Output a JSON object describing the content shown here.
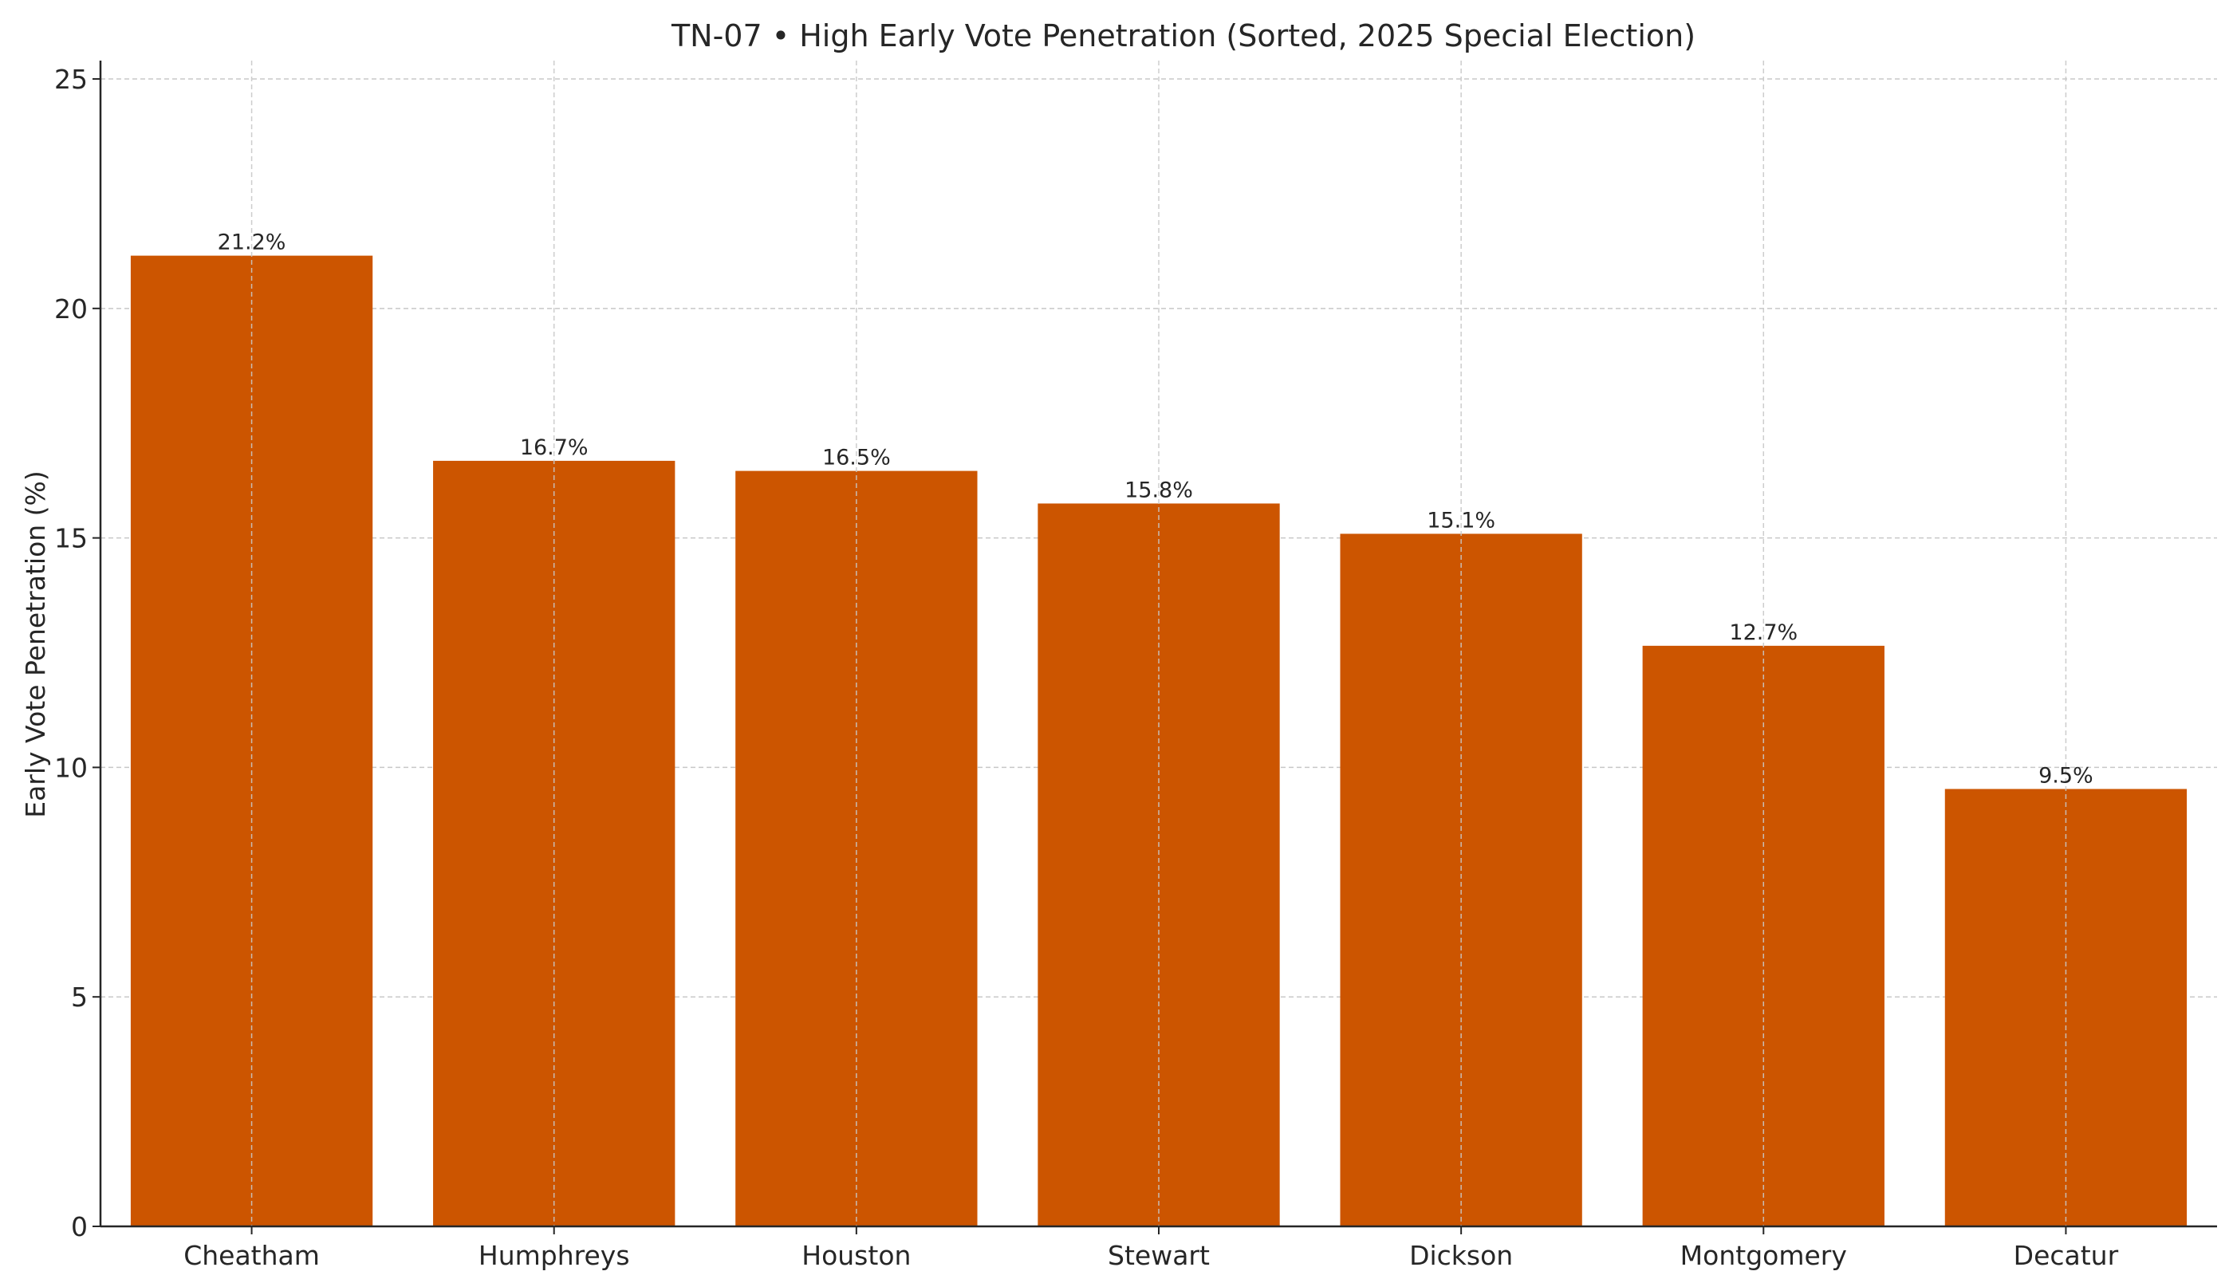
{
  "chart_data": {
    "type": "bar",
    "title": "TN-07 • High Early Vote Penetration (Sorted, 2025 Special Election)",
    "xlabel": "",
    "ylabel": "Early Vote Penetration (%)",
    "categories": [
      "Cheatham",
      "Humphreys",
      "Houston",
      "Stewart",
      "Dickson",
      "Montgomery",
      "Decatur"
    ],
    "values": [
      21.15,
      16.68,
      16.46,
      15.75,
      15.09,
      12.65,
      9.53
    ],
    "data_labels": [
      "21.2%",
      "16.7%",
      "16.5%",
      "15.8%",
      "15.1%",
      "12.7%",
      "9.5%"
    ],
    "ylim": [
      0,
      25.4
    ],
    "yticks": [
      0,
      5,
      10,
      15,
      20,
      25
    ],
    "grid": true,
    "bar_color": "#cc5500"
  }
}
